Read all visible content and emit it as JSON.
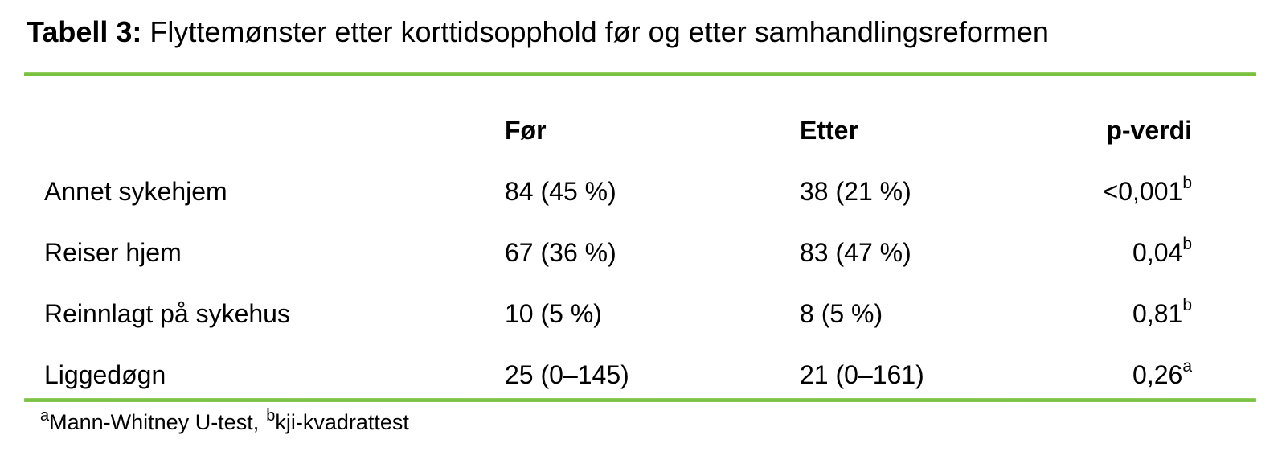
{
  "title": {
    "label": "Tabell 3:",
    "caption": "Flyttemønster etter korttidsopphold før og etter samhandlingsreformen"
  },
  "accent_color": "#74bb3b",
  "table": {
    "columns": [
      "",
      "Før",
      "Etter",
      "p-verdi"
    ],
    "rows": [
      {
        "label": "Annet sykehjem",
        "for": "84 (45 %)",
        "etter": "38 (21 %)",
        "p": "<0,001",
        "p_sup": "b"
      },
      {
        "label": "Reiser hjem",
        "for": "67 (36 %)",
        "etter": "83 (47 %)",
        "p": "0,04",
        "p_sup": "b"
      },
      {
        "label": "Reinnlagt på sykehus",
        "for": "10 (5 %)",
        "etter": "8 (5 %)",
        "p": "0,81",
        "p_sup": "b"
      },
      {
        "label": "Liggedøgn",
        "for": "25 (0–145)",
        "etter": "21 (0–161)",
        "p": "0,26",
        "p_sup": "a"
      }
    ]
  },
  "footnote": {
    "sup_a": "a",
    "text_a": "Mann-Whitney U-test,",
    "sup_b": "b",
    "text_b": "kji-kvadrattest"
  }
}
